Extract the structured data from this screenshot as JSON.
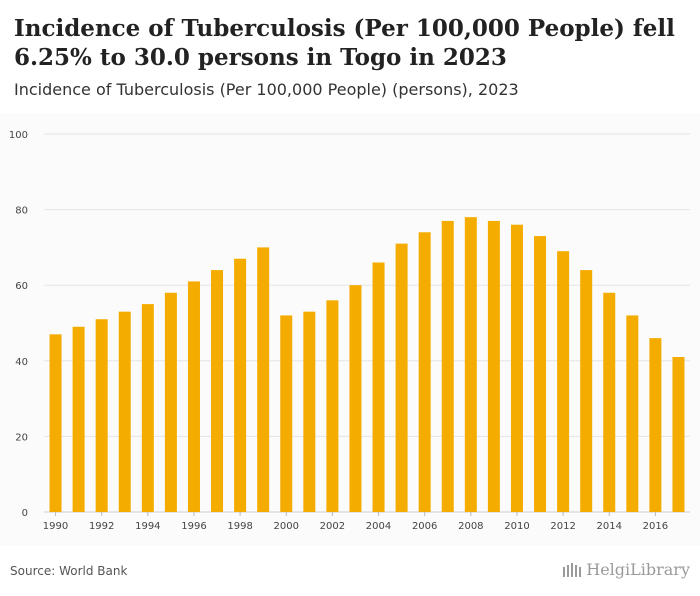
{
  "header": {
    "title": "Incidence of Tuberculosis (Per 100,000 People) fell 6.25% to 30.0 persons in Togo in 2023",
    "subtitle": "Incidence of Tuberculosis (Per 100,000 People) (persons), 2023"
  },
  "footer": {
    "source": "Source: World Bank",
    "logo_text": "HelgiLibrary"
  },
  "colors": {
    "bar": "#f5ac00",
    "grid": "#e4e4e4",
    "axis_text": "#444444"
  },
  "chart_data": {
    "type": "bar",
    "categories": [
      "1990",
      "1991",
      "1992",
      "1993",
      "1994",
      "1995",
      "1996",
      "1997",
      "1998",
      "1999",
      "2000",
      "2001",
      "2002",
      "2003",
      "2004",
      "2005",
      "2006",
      "2007",
      "2008",
      "2009",
      "2010",
      "2011",
      "2012",
      "2013",
      "2014",
      "2015",
      "2016",
      "2017"
    ],
    "values": [
      47,
      49,
      51,
      53,
      55,
      58,
      61,
      64,
      67,
      70,
      52,
      53,
      56,
      60,
      66,
      71,
      74,
      77,
      78,
      77,
      76,
      73,
      69,
      64,
      58,
      52,
      46,
      41
    ],
    "x_tick_labels": [
      "1990",
      "1992",
      "1994",
      "1996",
      "1998",
      "2000",
      "2002",
      "2004",
      "2006",
      "2008",
      "2010",
      "2012",
      "2014",
      "2016"
    ],
    "y_ticks": [
      0,
      20,
      40,
      60,
      80,
      100
    ],
    "ylim": [
      0,
      100
    ],
    "grid": true
  }
}
